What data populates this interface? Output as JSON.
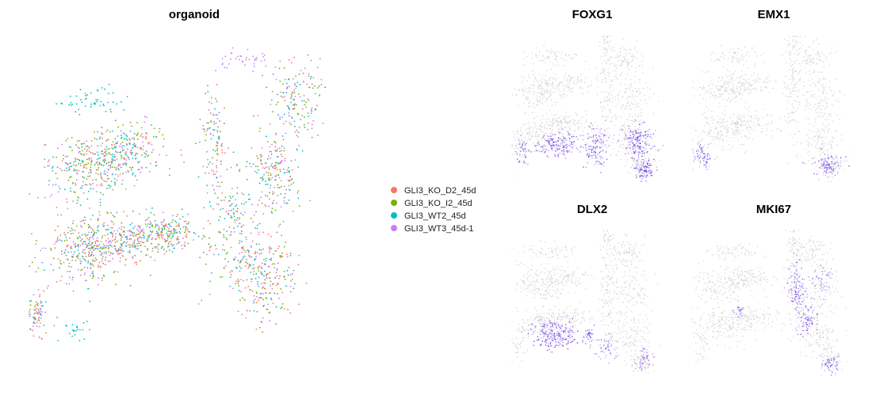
{
  "chart_data": [
    {
      "type": "scatter",
      "title": "organoid",
      "xlabel": "",
      "ylabel": "",
      "grid": false,
      "legend_position": "right",
      "legend": [
        {
          "name": "GLI3_KO_D2_45d",
          "color": "#F8766D"
        },
        {
          "name": "GLI3_KO_I2_45d",
          "color": "#7CAE00"
        },
        {
          "name": "GLI3_WT2_45d",
          "color": "#00BFC4"
        },
        {
          "name": "GLI3_WT3_45d-1",
          "color": "#C77CFF"
        }
      ],
      "regions": [
        {
          "series": "mixed",
          "x": 0.03,
          "y": 0.83,
          "sx": 0.015,
          "sy": 0.035,
          "w": 140
        },
        {
          "series": "mixed",
          "x": 0.17,
          "y": 0.64,
          "sx": 0.06,
          "sy": 0.05,
          "w": 500
        },
        {
          "series": "mixed",
          "x": 0.3,
          "y": 0.6,
          "sx": 0.08,
          "sy": 0.035,
          "w": 600
        },
        {
          "series": "mixed",
          "x": 0.42,
          "y": 0.58,
          "sx": 0.04,
          "sy": 0.025,
          "w": 250
        },
        {
          "series": "mixed",
          "x": 0.18,
          "y": 0.39,
          "sx": 0.06,
          "sy": 0.05,
          "w": 500
        },
        {
          "series": "mixed",
          "x": 0.3,
          "y": 0.33,
          "sx": 0.06,
          "sy": 0.04,
          "w": 450
        },
        {
          "series": "mixed",
          "x": 0.56,
          "y": 0.3,
          "sx": 0.02,
          "sy": 0.07,
          "w": 180
        },
        {
          "series": "mixed",
          "x": 0.6,
          "y": 0.56,
          "sx": 0.04,
          "sy": 0.08,
          "w": 300
        },
        {
          "series": "mixed",
          "x": 0.7,
          "y": 0.7,
          "sx": 0.05,
          "sy": 0.07,
          "w": 500
        },
        {
          "series": "mixed",
          "x": 0.74,
          "y": 0.4,
          "sx": 0.04,
          "sy": 0.06,
          "w": 350
        },
        {
          "series": "mixed",
          "x": 0.8,
          "y": 0.18,
          "sx": 0.04,
          "sy": 0.06,
          "w": 300
        },
        {
          "series": "GLI3_WT3_45d-1",
          "x": 0.65,
          "y": 0.05,
          "sx": 0.04,
          "sy": 0.02,
          "w": 70
        },
        {
          "series": "GLI3_WT2_45d",
          "x": 0.2,
          "y": 0.18,
          "sx": 0.04,
          "sy": 0.02,
          "w": 90
        },
        {
          "series": "GLI3_WT2_45d",
          "x": 0.14,
          "y": 0.88,
          "sx": 0.02,
          "sy": 0.02,
          "w": 40
        }
      ]
    },
    {
      "type": "scatter",
      "title": "FOXG1",
      "base_color": "#D3D3D3",
      "high_color": "#6A3DE8",
      "legend": [],
      "regions": [
        {
          "x": 0.08,
          "y": 0.8,
          "sx": 0.03,
          "sy": 0.04,
          "w": 60,
          "expr": 0.85
        },
        {
          "x": 0.3,
          "y": 0.75,
          "sx": 0.07,
          "sy": 0.04,
          "w": 280,
          "expr": 0.9
        },
        {
          "x": 0.55,
          "y": 0.76,
          "sx": 0.04,
          "sy": 0.07,
          "w": 220,
          "expr": 0.85
        },
        {
          "x": 0.82,
          "y": 0.72,
          "sx": 0.05,
          "sy": 0.06,
          "w": 260,
          "expr": 0.9
        },
        {
          "x": 0.86,
          "y": 0.92,
          "sx": 0.03,
          "sy": 0.04,
          "w": 150,
          "expr": 0.95
        }
      ]
    },
    {
      "type": "scatter",
      "title": "EMX1",
      "base_color": "#D3D3D3",
      "high_color": "#6A3DE8",
      "legend": [],
      "regions": [
        {
          "x": 0.07,
          "y": 0.82,
          "sx": 0.03,
          "sy": 0.04,
          "w": 90,
          "expr": 0.95
        },
        {
          "x": 0.82,
          "y": 0.88,
          "sx": 0.05,
          "sy": 0.04,
          "w": 160,
          "expr": 0.85
        }
      ]
    },
    {
      "type": "scatter",
      "title": "DLX2",
      "base_color": "#D3D3D3",
      "high_color": "#6A3DE8",
      "legend": [],
      "regions": [
        {
          "x": 0.28,
          "y": 0.72,
          "sx": 0.07,
          "sy": 0.05,
          "w": 320,
          "expr": 1.0
        },
        {
          "x": 0.5,
          "y": 0.72,
          "sx": 0.02,
          "sy": 0.03,
          "w": 60,
          "expr": 0.9
        },
        {
          "x": 0.62,
          "y": 0.8,
          "sx": 0.04,
          "sy": 0.05,
          "w": 80,
          "expr": 0.6
        },
        {
          "x": 0.86,
          "y": 0.88,
          "sx": 0.03,
          "sy": 0.04,
          "w": 70,
          "expr": 0.7
        }
      ]
    },
    {
      "type": "scatter",
      "title": "MKI67",
      "base_color": "#D3D3D3",
      "high_color": "#6A3DE8",
      "legend": [],
      "regions": [
        {
          "x": 0.65,
          "y": 0.42,
          "sx": 0.03,
          "sy": 0.08,
          "w": 160,
          "expr": 0.85
        },
        {
          "x": 0.7,
          "y": 0.62,
          "sx": 0.03,
          "sy": 0.06,
          "w": 120,
          "expr": 0.85
        },
        {
          "x": 0.85,
          "y": 0.92,
          "sx": 0.03,
          "sy": 0.03,
          "w": 70,
          "expr": 0.9
        },
        {
          "x": 0.28,
          "y": 0.55,
          "sx": 0.02,
          "sy": 0.02,
          "w": 40,
          "expr": 0.8
        },
        {
          "x": 0.8,
          "y": 0.35,
          "sx": 0.03,
          "sy": 0.05,
          "w": 60,
          "expr": 0.7
        }
      ]
    }
  ]
}
